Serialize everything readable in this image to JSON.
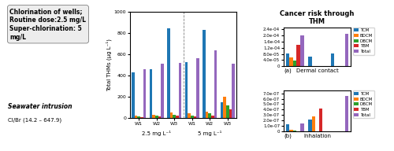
{
  "chart_data": [
    {
      "type": "bar",
      "categories": [
        "W1",
        "W2",
        "W3",
        "W1",
        "W2",
        "W3"
      ],
      "group_labels": [
        "2.5 mg L⁻¹",
        "5 mg L⁻¹"
      ],
      "series": [
        {
          "name": "TCM",
          "values": [
            430,
            460,
            850,
            530,
            830,
            150
          ]
        },
        {
          "name": "BDCM",
          "values": [
            20,
            30,
            50,
            40,
            60,
            200
          ]
        },
        {
          "name": "DBCM",
          "values": [
            10,
            20,
            30,
            20,
            40,
            120
          ]
        },
        {
          "name": "TBM",
          "values": [
            5,
            10,
            20,
            10,
            20,
            80
          ]
        },
        {
          "name": "Total",
          "values": [
            460,
            510,
            520,
            560,
            640,
            510
          ]
        }
      ],
      "ylabel": "Total THMs (μg L⁻¹)",
      "ylim": [
        0,
        1000
      ],
      "yticks": [
        0,
        200,
        400,
        600,
        800,
        1000
      ],
      "annotations": [
        "Seawater intrusion",
        "Cl/Br (14.2 – 647.9)",
        "Chlorination of wells;\nRoutine dose:2.5 mg/L\nSuper-chlorination: 5\nmg/L"
      ]
    },
    {
      "type": "bar",
      "title": "Cancer risk through\nTHM",
      "xlabel": "Dermal contact",
      "categories": [
        null,
        null,
        null
      ],
      "series": [
        {
          "name": "TCM",
          "values": [
            8.5e-05,
            6.5e-05,
            8.5e-05
          ]
        },
        {
          "name": "BDCM",
          "values": [
            5.5e-05,
            0,
            0
          ]
        },
        {
          "name": "DBCM",
          "values": [
            3.5e-05,
            0,
            0
          ]
        },
        {
          "name": "TBM",
          "values": [
            0.00014,
            0,
            0
          ]
        },
        {
          "name": "Total",
          "values": [
            0.0002,
            0,
            0.00021
          ]
        }
      ],
      "ylim": [
        0,
        0.00025
      ],
      "yticks": [
        0,
        {
          "value": 4e-05,
          "label": "4.0e-05"
        },
        {
          "value": 8e-05,
          "label": "8.0e-05"
        },
        {
          "value": 0.00012,
          "label": "1.2e-04"
        },
        {
          "value": 0.00016,
          "label": "1.6e-04"
        },
        {
          "value": 0.0002,
          "label": "2.0e-04"
        },
        {
          "value": 0.00024,
          "label": "2.4e-04"
        }
      ],
      "tick_labels": "y",
      "legend": "upper left",
      "annotations": [
        "(a)"
      ]
    },
    {
      "type": "bar",
      "xlabel": "Inhalation",
      "categories": [
        null,
        null,
        null
      ],
      "series": [
        {
          "name": "TCM",
          "values": [
            1.3e-07,
            2.2e-07,
            0
          ]
        },
        {
          "name": "BDCM",
          "values": [
            2.5e-08,
            2.8e-07,
            0
          ]
        },
        {
          "name": "DBCM",
          "values": [
            1e-08,
            0,
            0
          ]
        },
        {
          "name": "TBM",
          "values": [
            0,
            4.2e-07,
            0
          ]
        },
        {
          "name": "Total",
          "values": [
            1.5e-07,
            0,
            6.5e-07
          ]
        }
      ],
      "ylim": [
        0,
        7.5e-07
      ],
      "yticks": [
        0,
        {
          "value": 1e-07,
          "label": "1.0e-07"
        },
        {
          "value": 2e-07,
          "label": "2.0e-07"
        },
        {
          "value": 3e-07,
          "label": "3.0e-07"
        },
        {
          "value": 4e-07,
          "label": "4.0e-07"
        },
        {
          "value": 5e-07,
          "label": "5.0e-07"
        },
        {
          "value": 6e-07,
          "label": "6.0e-07"
        },
        {
          "value": 7e-07,
          "label": "7.0e-07"
        }
      ],
      "tick_labels": "y",
      "legend": "upper left",
      "annotations": [
        "(b)"
      ]
    }
  ]
}
